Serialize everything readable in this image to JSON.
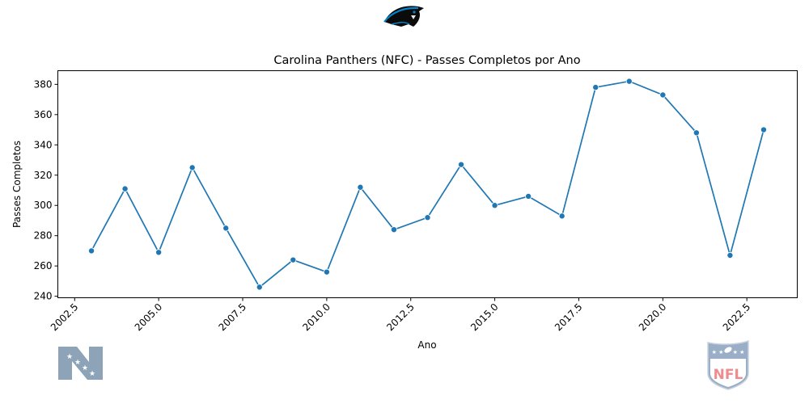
{
  "chart_data": {
    "type": "line",
    "title": "Carolina Panthers (NFC) - Passes Completos por Ano",
    "xlabel": "Ano",
    "ylabel": "Passes Completos",
    "xlim": [
      2002.0,
      2024.0
    ],
    "ylim": [
      239,
      389
    ],
    "x_ticks": [
      2002.5,
      2005.0,
      2007.5,
      2010.0,
      2012.5,
      2015.0,
      2017.5,
      2020.0,
      2022.5
    ],
    "x_tick_labels": [
      "2002.5",
      "2005.0",
      "2007.5",
      "2010.0",
      "2012.5",
      "2015.0",
      "2017.5",
      "2020.0",
      "2022.5"
    ],
    "y_ticks": [
      240,
      260,
      280,
      300,
      320,
      340,
      360,
      380
    ],
    "y_tick_labels": [
      "240",
      "260",
      "280",
      "300",
      "320",
      "340",
      "360",
      "380"
    ],
    "grid": false,
    "legend": "none",
    "series": [
      {
        "color": "#1f77b4",
        "marker": "circle",
        "x": [
          2003,
          2004,
          2005,
          2006,
          2007,
          2008,
          2009,
          2010,
          2011,
          2012,
          2013,
          2014,
          2015,
          2016,
          2017,
          2018,
          2019,
          2020,
          2021,
          2022,
          2023
        ],
        "values": [
          270,
          311,
          269,
          325,
          285,
          246,
          264,
          256,
          312,
          284,
          292,
          327,
          300,
          306,
          293,
          378,
          382,
          373,
          348,
          267,
          350
        ]
      }
    ]
  },
  "logos": {
    "team": "carolina-panthers-logo",
    "conference": "nfc-logo",
    "league": "nfl-logo",
    "conference_text": "N",
    "league_text": "NFL"
  }
}
